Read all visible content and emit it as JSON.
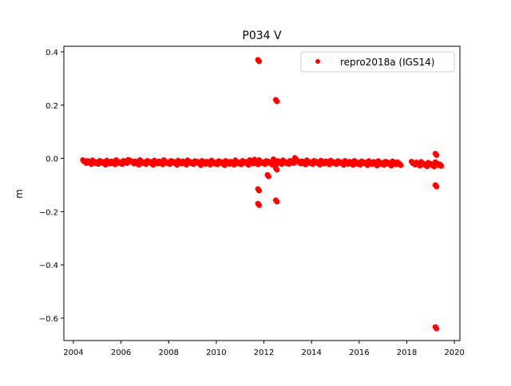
{
  "chart_data": {
    "type": "scatter",
    "title": "P034 V",
    "xlabel": "",
    "ylabel": "m",
    "xlim": [
      2003.6,
      2020.23
    ],
    "ylim": [
      -0.684,
      0.421
    ],
    "xticks": [
      2004,
      2006,
      2008,
      2010,
      2012,
      2014,
      2016,
      2018,
      2020
    ],
    "xtick_labels": [
      "2004",
      "2006",
      "2008",
      "2010",
      "2012",
      "2014",
      "2016",
      "2018",
      "2020"
    ],
    "yticks": [
      0.4,
      0.2,
      0.0,
      -0.2,
      -0.4,
      -0.6
    ],
    "ytick_labels": [
      "0.4",
      "0.2",
      "0.0",
      "−0.2",
      "−0.4",
      "−0.6"
    ],
    "grid": false,
    "legend_position": "top-right",
    "series": [
      {
        "name": "repro2018a (IGS14)",
        "color": "#ff0000",
        "points": [
          [
            2004.4,
            -0.006
          ],
          [
            2004.5,
            -0.012
          ],
          [
            2004.6,
            -0.009
          ],
          [
            2004.7,
            -0.016
          ],
          [
            2004.8,
            -0.007
          ],
          [
            2004.9,
            -0.013
          ],
          [
            2005.0,
            -0.015
          ],
          [
            2005.1,
            -0.009
          ],
          [
            2005.2,
            -0.012
          ],
          [
            2005.3,
            -0.018
          ],
          [
            2005.4,
            -0.008
          ],
          [
            2005.5,
            -0.014
          ],
          [
            2005.6,
            -0.011
          ],
          [
            2005.7,
            -0.017
          ],
          [
            2005.8,
            -0.006
          ],
          [
            2005.9,
            -0.013
          ],
          [
            2006.0,
            -0.016
          ],
          [
            2006.1,
            -0.009
          ],
          [
            2006.2,
            -0.012
          ],
          [
            2006.3,
            -0.005
          ],
          [
            2006.4,
            -0.008
          ],
          [
            2006.5,
            -0.014
          ],
          [
            2006.6,
            -0.011
          ],
          [
            2006.7,
            -0.018
          ],
          [
            2006.8,
            -0.006
          ],
          [
            2006.9,
            -0.013
          ],
          [
            2007.0,
            -0.016
          ],
          [
            2007.1,
            -0.009
          ],
          [
            2007.2,
            -0.012
          ],
          [
            2007.3,
            -0.019
          ],
          [
            2007.4,
            -0.008
          ],
          [
            2007.5,
            -0.014
          ],
          [
            2007.6,
            -0.011
          ],
          [
            2007.7,
            -0.017
          ],
          [
            2007.8,
            -0.006
          ],
          [
            2007.9,
            -0.013
          ],
          [
            2008.0,
            -0.016
          ],
          [
            2008.1,
            -0.009
          ],
          [
            2008.2,
            -0.012
          ],
          [
            2008.3,
            -0.019
          ],
          [
            2008.4,
            -0.008
          ],
          [
            2008.5,
            -0.014
          ],
          [
            2008.6,
            -0.011
          ],
          [
            2008.7,
            -0.018
          ],
          [
            2008.8,
            -0.007
          ],
          [
            2008.9,
            -0.013
          ],
          [
            2009.0,
            -0.016
          ],
          [
            2009.1,
            -0.01
          ],
          [
            2009.2,
            -0.012
          ],
          [
            2009.3,
            -0.02
          ],
          [
            2009.4,
            -0.009
          ],
          [
            2009.5,
            -0.015
          ],
          [
            2009.6,
            -0.012
          ],
          [
            2009.7,
            -0.018
          ],
          [
            2009.8,
            -0.008
          ],
          [
            2009.9,
            -0.014
          ],
          [
            2010.0,
            -0.017
          ],
          [
            2010.1,
            -0.01
          ],
          [
            2010.2,
            -0.013
          ],
          [
            2010.3,
            -0.02
          ],
          [
            2010.4,
            -0.009
          ],
          [
            2010.5,
            -0.015
          ],
          [
            2010.6,
            -0.012
          ],
          [
            2010.7,
            -0.018
          ],
          [
            2010.8,
            -0.007
          ],
          [
            2010.9,
            -0.014
          ],
          [
            2011.0,
            -0.017
          ],
          [
            2011.1,
            -0.009
          ],
          [
            2011.2,
            -0.012
          ],
          [
            2011.3,
            -0.019
          ],
          [
            2011.4,
            -0.006
          ],
          [
            2011.5,
            -0.014
          ],
          [
            2011.6,
            -0.004
          ],
          [
            2011.7,
            -0.017
          ],
          [
            2011.8,
            -0.006
          ],
          [
            2011.9,
            -0.013
          ],
          [
            2012.0,
            -0.016
          ],
          [
            2012.1,
            -0.009
          ],
          [
            2012.2,
            -0.012
          ],
          [
            2012.3,
            -0.018
          ],
          [
            2012.4,
            -0.003
          ],
          [
            2012.5,
            -0.014
          ],
          [
            2012.6,
            -0.01
          ],
          [
            2012.7,
            -0.016
          ],
          [
            2012.8,
            -0.007
          ],
          [
            2012.9,
            -0.013
          ],
          [
            2013.0,
            -0.015
          ],
          [
            2013.1,
            -0.009
          ],
          [
            2013.2,
            -0.012
          ],
          [
            2013.3,
            0.002
          ],
          [
            2013.4,
            -0.008
          ],
          [
            2013.5,
            -0.014
          ],
          [
            2013.6,
            -0.011
          ],
          [
            2013.7,
            -0.017
          ],
          [
            2013.8,
            -0.007
          ],
          [
            2013.9,
            -0.013
          ],
          [
            2014.0,
            -0.016
          ],
          [
            2014.1,
            -0.009
          ],
          [
            2014.2,
            -0.012
          ],
          [
            2014.3,
            -0.018
          ],
          [
            2014.4,
            -0.008
          ],
          [
            2014.5,
            -0.014
          ],
          [
            2014.6,
            -0.011
          ],
          [
            2014.7,
            -0.017
          ],
          [
            2014.8,
            -0.008
          ],
          [
            2014.9,
            -0.013
          ],
          [
            2015.0,
            -0.016
          ],
          [
            2015.1,
            -0.01
          ],
          [
            2015.2,
            -0.013
          ],
          [
            2015.3,
            -0.019
          ],
          [
            2015.4,
            -0.009
          ],
          [
            2015.5,
            -0.015
          ],
          [
            2015.6,
            -0.012
          ],
          [
            2015.7,
            -0.019
          ],
          [
            2015.8,
            -0.009
          ],
          [
            2015.9,
            -0.015
          ],
          [
            2016.0,
            -0.018
          ],
          [
            2016.1,
            -0.011
          ],
          [
            2016.2,
            -0.014
          ],
          [
            2016.3,
            -0.02
          ],
          [
            2016.4,
            -0.01
          ],
          [
            2016.5,
            -0.016
          ],
          [
            2016.6,
            -0.013
          ],
          [
            2016.7,
            -0.021
          ],
          [
            2016.8,
            -0.01
          ],
          [
            2016.9,
            -0.016
          ],
          [
            2017.0,
            -0.019
          ],
          [
            2017.1,
            -0.012
          ],
          [
            2017.2,
            -0.015
          ],
          [
            2017.3,
            -0.022
          ],
          [
            2017.4,
            -0.011
          ],
          [
            2017.5,
            -0.017
          ],
          [
            2017.6,
            -0.014
          ],
          [
            2017.7,
            -0.02
          ],
          [
            2018.2,
            -0.012
          ],
          [
            2018.3,
            -0.018
          ],
          [
            2018.4,
            -0.015
          ],
          [
            2018.5,
            -0.022
          ],
          [
            2018.6,
            -0.013
          ],
          [
            2018.7,
            -0.019
          ],
          [
            2018.8,
            -0.024
          ],
          [
            2018.9,
            -0.016
          ],
          [
            2019.0,
            -0.02
          ],
          [
            2019.1,
            -0.025
          ],
          [
            2019.2,
            -0.014
          ],
          [
            2019.3,
            -0.02
          ],
          [
            2019.4,
            -0.023
          ],
          [
            2011.75,
            0.37
          ],
          [
            2012.5,
            0.22
          ],
          [
            2011.75,
            -0.115
          ],
          [
            2011.75,
            -0.17
          ],
          [
            2012.15,
            -0.062
          ],
          [
            2012.5,
            -0.037
          ],
          [
            2012.5,
            -0.157
          ],
          [
            2019.2,
            0.018
          ],
          [
            2019.2,
            -0.1
          ],
          [
            2019.2,
            -0.633
          ]
        ]
      }
    ]
  }
}
